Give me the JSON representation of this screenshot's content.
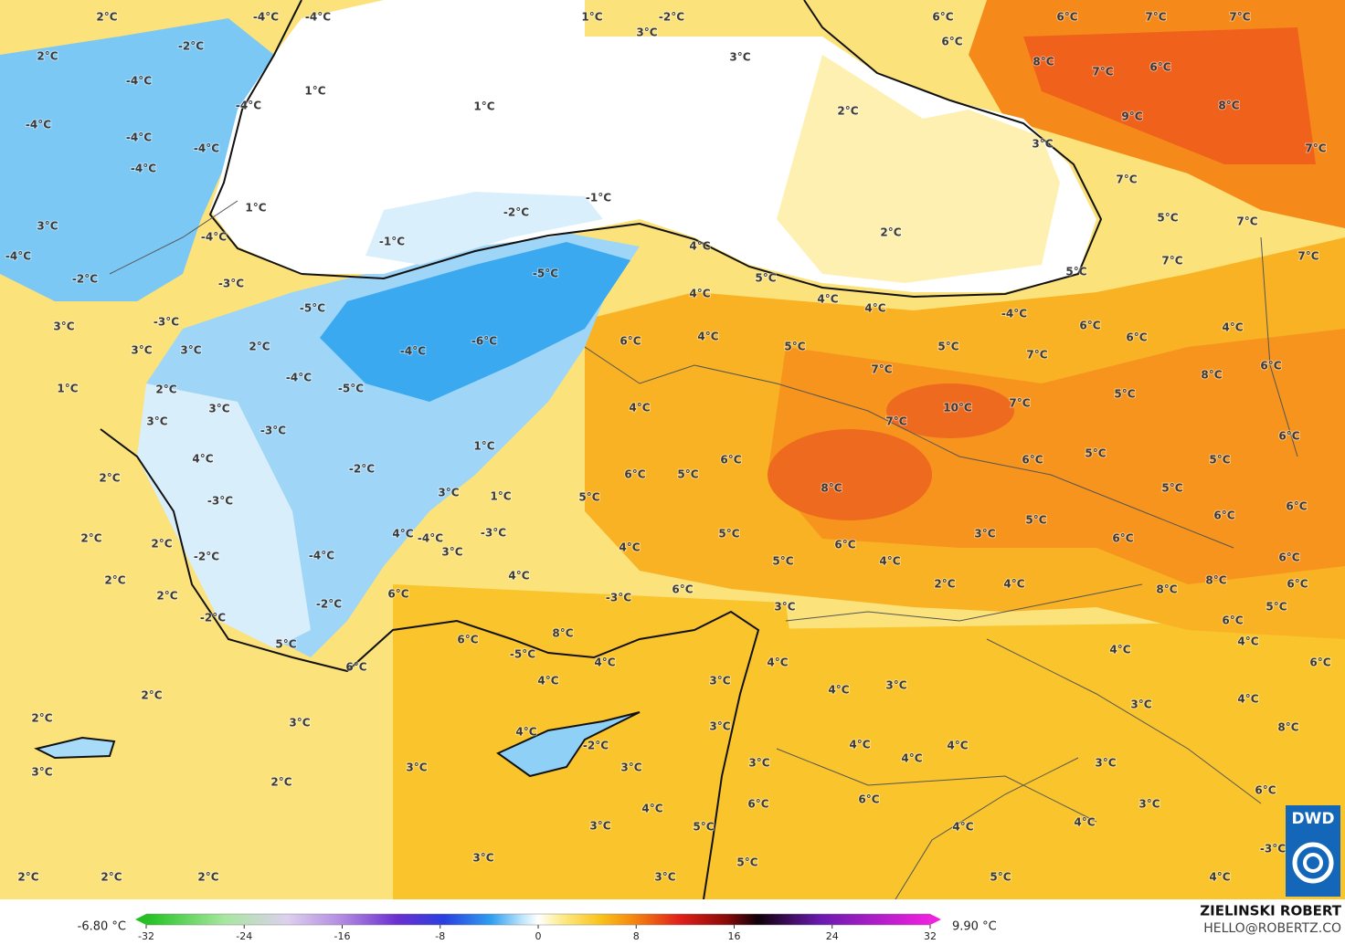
{
  "labels": [
    "2°C",
    "-4°C",
    "-4°C",
    "1°C",
    "-2°C",
    "6°C",
    "6°C",
    "7°C",
    "7°C",
    "-2°C",
    "2°C",
    "3°C",
    "6°C",
    "3°C",
    "8°C",
    "7°C",
    "6°C",
    "-4°C",
    "1°C",
    "1°C",
    "-4°C",
    "2°C",
    "9°C",
    "8°C",
    "-4°C",
    "-4°C",
    "3°C",
    "7°C",
    "-4°C",
    "-4°C",
    "7°C",
    "1°C",
    "-1°C",
    "-2°C",
    "5°C",
    "7°C",
    "3°C",
    "-4°C",
    "-1°C",
    "2°C",
    "4°C",
    "7°C",
    "7°C",
    "-4°C",
    "-2°C",
    "-3°C",
    "-5°C",
    "5°C",
    "5°C",
    "4°C",
    "4°C",
    "4°C",
    "-5°C",
    "-4°C",
    "-3°C",
    "3°C",
    "6°C",
    "4°C",
    "2°C",
    "3°C",
    "3°C",
    "-4°C",
    "-6°C",
    "6°C",
    "4°C",
    "5°C",
    "5°C",
    "6°C",
    "6°C",
    "-4°C",
    "7°C",
    "7°C",
    "8°C",
    "1°C",
    "2°C",
    "-5°C",
    "4°C",
    "5°C",
    "7°C",
    "10°C",
    "3°C",
    "-3°C",
    "3°C",
    "7°C",
    "6°C",
    "1°C",
    "4°C",
    "5°C",
    "6°C",
    "5°C",
    "6°C",
    "2°C",
    "-2°C",
    "6°C",
    "5°C",
    "8°C",
    "5°C",
    "-3°C",
    "3°C",
    "1°C",
    "5°C",
    "6°C",
    "4°C",
    "-4°C",
    "-3°C",
    "5°C",
    "3°C",
    "5°C",
    "6°C",
    "6°C",
    "2°C",
    "2°C",
    "-2°C",
    "3°C",
    "-4°C",
    "4°C",
    "6°C",
    "5°C",
    "4°C",
    "6°C",
    "2°C",
    "4°C",
    "6°C",
    "6°C",
    "2°C",
    "4°C",
    "8°C",
    "8°C",
    "6°C",
    "2°C",
    "-2°C",
    "-3°C",
    "3°C",
    "5°C",
    "-2°C",
    "8°C",
    "6°C",
    "6°C",
    "5°C",
    "4°C",
    "4°C",
    "-5°C",
    "4°C",
    "6°C",
    "4°C",
    "6°C",
    "4°C",
    "3°C",
    "4°C",
    "3°C",
    "2°C",
    "3°C",
    "4°C",
    "2°C",
    "3°C",
    "4°C",
    "3°C",
    "8°C",
    "-2°C",
    "4°C",
    "4°C",
    "4°C",
    "3°C",
    "3°C",
    "3°C",
    "3°C",
    "3°C",
    "2°C",
    "6°C",
    "4°C",
    "6°C",
    "3°C",
    "6°C",
    "3°C",
    "5°C",
    "4°C",
    "4°C",
    "3°C",
    "5°C",
    "-3°C",
    "2°C",
    "2°C",
    "2°C",
    "3°C",
    "5°C",
    "4°C"
  ],
  "legend": {
    "min_label": "-6.80 °C",
    "max_label": "9.90 °C",
    "ticks": [
      -32,
      -24,
      -16,
      -8,
      0,
      8,
      16,
      24,
      32
    ]
  },
  "credit": {
    "name": "ZIELINSKI ROBERT",
    "email": "HELLO@ROBERTZ.CO"
  },
  "logo": "DWD"
}
